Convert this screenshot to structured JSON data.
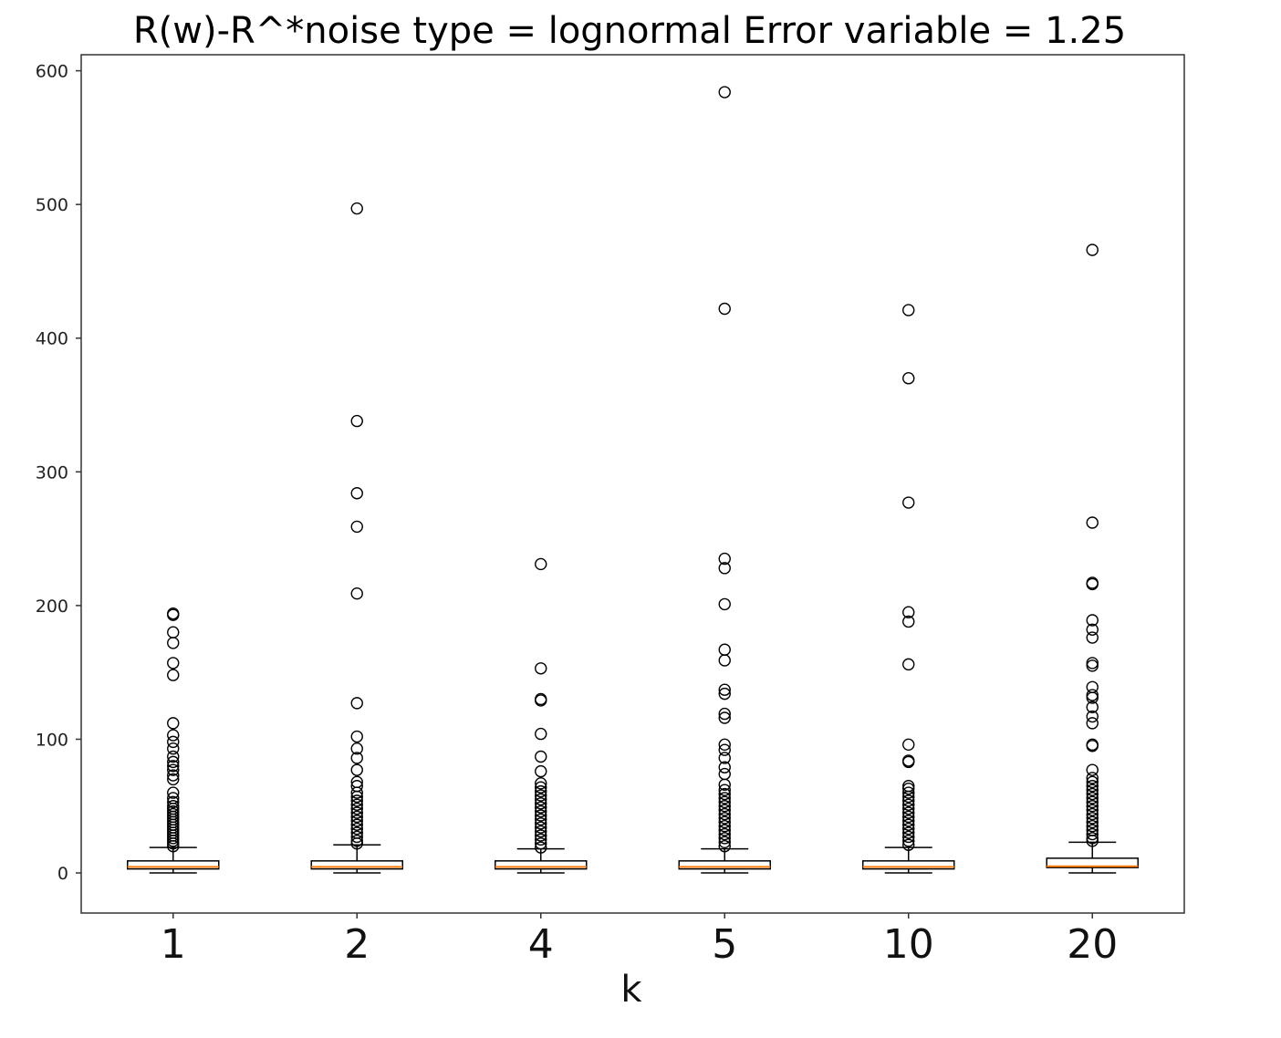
{
  "chart_data": {
    "type": "box",
    "title": "R(w)-R^*noise type = lognormal Error variable = 1.25",
    "xlabel": "k",
    "ylabel": "",
    "ylim": [
      -30,
      612
    ],
    "yticks": [
      0,
      100,
      200,
      300,
      400,
      500,
      600
    ],
    "grid": false,
    "colors": {
      "median": "#ff7f0e",
      "box": "#000000",
      "outlier": "#000000"
    },
    "categories": [
      "1",
      "2",
      "4",
      "5",
      "10",
      "20"
    ],
    "boxes": [
      {
        "label": "1",
        "whislo": 0,
        "q1": 3,
        "med": 4.5,
        "q3": 9,
        "whishi": 19,
        "fliers": [
          194,
          193,
          180,
          172,
          157,
          148,
          112,
          103,
          98,
          93,
          87,
          83,
          80,
          77,
          73,
          70,
          60,
          56,
          53,
          50,
          48,
          46,
          44,
          42,
          40,
          38,
          36,
          34,
          32,
          30,
          28,
          26,
          24,
          22,
          20
        ]
      },
      {
        "label": "2",
        "whislo": 0,
        "q1": 3,
        "med": 4.5,
        "q3": 9,
        "whishi": 21,
        "fliers": [
          497,
          338,
          284,
          259,
          209,
          127,
          102,
          93,
          86,
          77,
          68,
          65,
          60,
          57,
          54,
          51,
          48,
          45,
          42,
          39,
          36,
          33,
          30,
          27,
          24,
          22
        ]
      },
      {
        "label": "4",
        "whislo": 0,
        "q1": 3,
        "med": 4.5,
        "q3": 9,
        "whishi": 18,
        "fliers": [
          231,
          153,
          130,
          129,
          104,
          87,
          76,
          67,
          64,
          61,
          58,
          55,
          52,
          49,
          46,
          43,
          40,
          37,
          34,
          31,
          28,
          25,
          22,
          19
        ]
      },
      {
        "label": "5",
        "whislo": 0,
        "q1": 3,
        "med": 4.5,
        "q3": 9,
        "whishi": 18,
        "fliers": [
          584,
          422,
          235,
          228,
          201,
          167,
          159,
          137,
          134,
          119,
          116,
          96,
          92,
          86,
          79,
          74,
          66,
          62,
          59,
          56,
          53,
          50,
          47,
          44,
          41,
          38,
          35,
          32,
          29,
          26,
          23,
          20
        ]
      },
      {
        "label": "10",
        "whislo": 0,
        "q1": 3,
        "med": 4.5,
        "q3": 9,
        "whishi": 19,
        "fliers": [
          421,
          370,
          277,
          195,
          188,
          156,
          96,
          84,
          83,
          65,
          63,
          60,
          57,
          54,
          51,
          48,
          45,
          42,
          39,
          36,
          33,
          30,
          27,
          24,
          21
        ]
      },
      {
        "label": "20",
        "whislo": 0,
        "q1": 4,
        "med": 5,
        "q3": 11,
        "whishi": 23,
        "fliers": [
          466,
          262,
          217,
          216,
          189,
          182,
          176,
          157,
          155,
          139,
          133,
          131,
          124,
          117,
          112,
          96,
          95,
          77,
          71,
          68,
          65,
          62,
          59,
          56,
          53,
          50,
          47,
          44,
          41,
          38,
          35,
          32,
          29,
          26,
          24
        ]
      }
    ]
  }
}
